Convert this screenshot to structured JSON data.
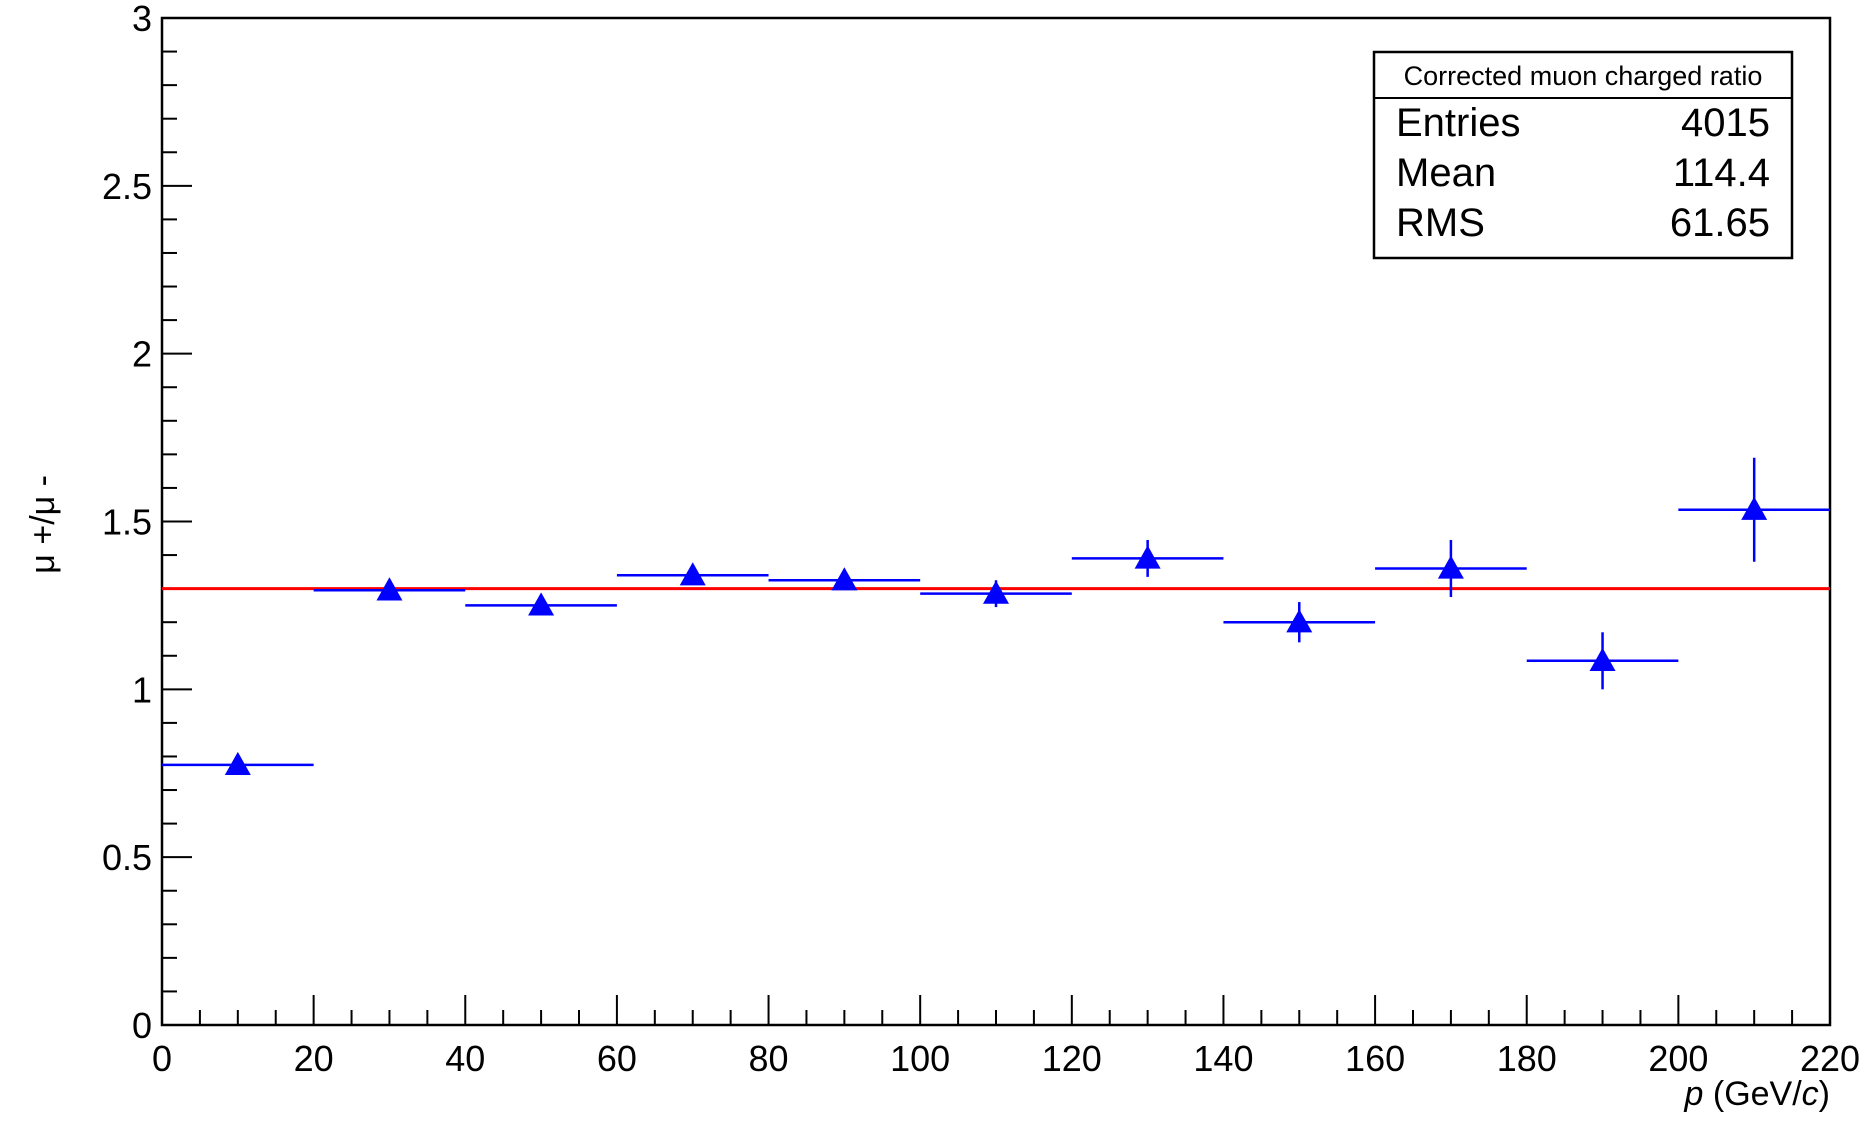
{
  "chart_data": {
    "type": "scatter",
    "title": "",
    "xlabel_italic": "p",
    "xlabel_rest": " (GeV/",
    "xlabel_italic2": "c",
    "xlabel_end": ")",
    "ylabel": "μ +/μ -",
    "xlim": [
      0,
      220
    ],
    "ylim": [
      0,
      3
    ],
    "x_ticks": [
      0,
      20,
      40,
      60,
      80,
      100,
      120,
      140,
      160,
      180,
      200,
      220
    ],
    "y_ticks": [
      0,
      0.5,
      1,
      1.5,
      2,
      2.5,
      3
    ],
    "y_tick_labels": [
      "0",
      "0.5",
      "1",
      "1.5",
      "2",
      "2.5",
      "3"
    ],
    "bin_width": 20,
    "series": [
      {
        "marker": "triangle-up",
        "color": "#0000ff",
        "x": [
          10,
          30,
          50,
          70,
          90,
          110,
          130,
          150,
          170,
          190,
          210
        ],
        "y": [
          0.775,
          1.295,
          1.25,
          1.34,
          1.325,
          1.285,
          1.39,
          1.2,
          1.36,
          1.085,
          1.535
        ],
        "y_err": [
          0.015,
          0.015,
          0.015,
          0.015,
          0.02,
          0.04,
          0.055,
          0.06,
          0.085,
          0.085,
          0.155
        ]
      }
    ],
    "fit_line": {
      "y": 1.3,
      "color": "#ff0000"
    },
    "grid": false,
    "stats_box": {
      "title": "Corrected muon charged ratio",
      "rows": [
        {
          "label": "Entries",
          "value": "4015"
        },
        {
          "label": "Mean",
          "value": "114.4"
        },
        {
          "label": "RMS",
          "value": "61.65"
        }
      ],
      "placement": "top-right"
    }
  }
}
